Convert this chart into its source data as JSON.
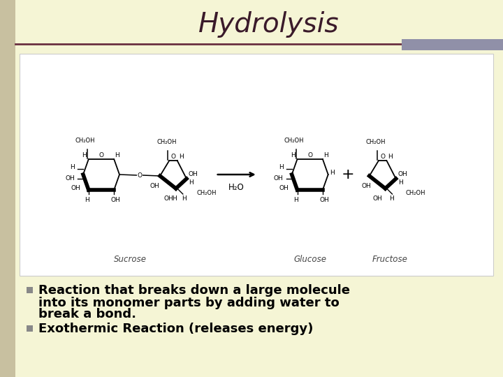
{
  "title": "Hydrolysis",
  "title_font": "Times New Roman",
  "title_style": "italic",
  "title_fontsize": 28,
  "title_color": "#3a1a2a",
  "background_color": "#f5f5d5",
  "left_bar_color": "#c8c0a0",
  "left_bar_width": 22,
  "divider_color": "#6a3040",
  "accent_rect_color": "#9090a8",
  "diagram_bg": "#ffffff",
  "diagram_border": "#cccccc",
  "bullet_color": "#888888",
  "bullet_size": 13,
  "bullet_text_color": "#000000",
  "bullet1_line1": "Reaction that breaks down a large molecule",
  "bullet1_line2": "into its monomer parts by adding water to",
  "bullet1_line3": "break a bond.",
  "bullet2": "Exothermic Reaction (releases energy)",
  "h2o_label": "H₂O",
  "sucrose_label": "Sucrose",
  "glucose_label": "Glucose",
  "fructose_label": "Fructose"
}
